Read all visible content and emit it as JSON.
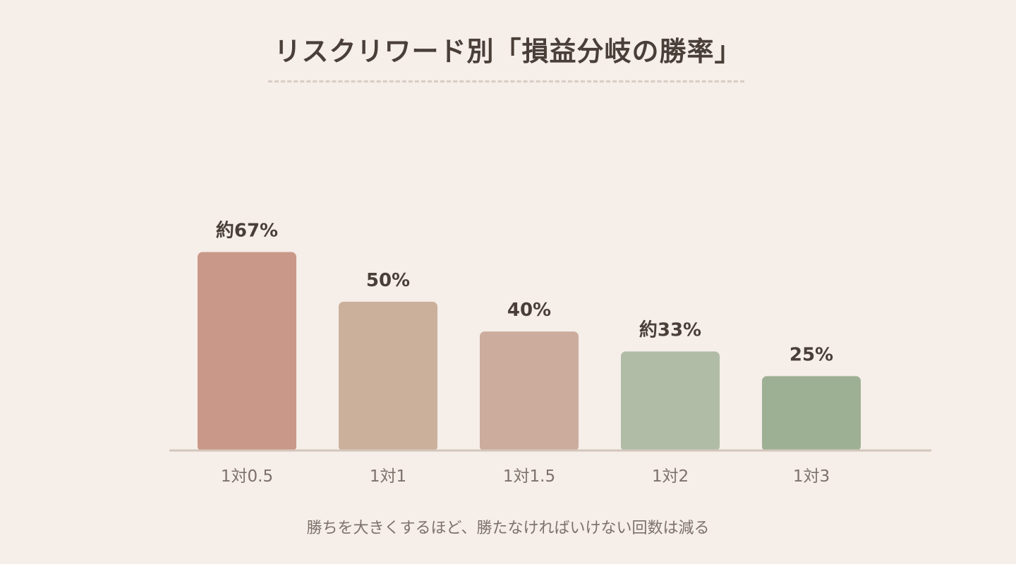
{
  "chart_data": {
    "type": "bar",
    "title": "リスクリワード別「損益分岐の勝率」",
    "categories": [
      "1対0.5",
      "1対1",
      "1対1.5",
      "1対2",
      "1対3"
    ],
    "values": [
      66.7,
      50,
      40,
      33.3,
      25
    ],
    "value_labels": [
      "約67%",
      "50%",
      "40%",
      "約33%",
      "25%"
    ],
    "colors": [
      "#c99888",
      "#cbb09c",
      "#cbac9d",
      "#b1bca7",
      "#9eb094"
    ],
    "ylim": [
      0,
      100
    ],
    "grid": false,
    "legend": "none",
    "xlabel": "",
    "ylabel": ""
  },
  "caption": "勝ちを大きくするほど、勝たなければいけない回数は減る"
}
